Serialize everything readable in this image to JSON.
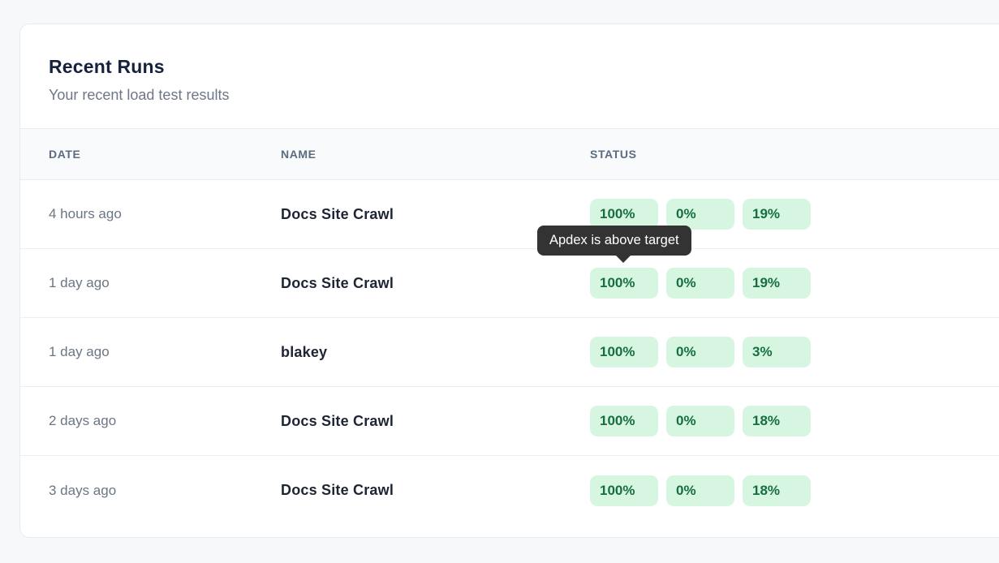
{
  "card": {
    "title": "Recent Runs",
    "subtitle": "Your recent load test results"
  },
  "table": {
    "columns": [
      {
        "label": "DATE"
      },
      {
        "label": "NAME"
      },
      {
        "label": "STATUS"
      }
    ],
    "rows": [
      {
        "date": "4 hours ago",
        "name": "Docs Site Crawl",
        "badges": [
          "100%",
          "0%",
          "19%"
        ]
      },
      {
        "date": "1 day ago",
        "name": "Docs Site Crawl",
        "badges": [
          "100%",
          "0%",
          "19%"
        ],
        "tooltip": "Apdex is above target"
      },
      {
        "date": "1 day ago",
        "name": "blakey",
        "badges": [
          "100%",
          "0%",
          "3%"
        ]
      },
      {
        "date": "2 days ago",
        "name": "Docs Site Crawl",
        "badges": [
          "100%",
          "0%",
          "18%"
        ]
      },
      {
        "date": "3 days ago",
        "name": "Docs Site Crawl",
        "badges": [
          "100%",
          "0%",
          "18%"
        ]
      }
    ]
  },
  "colors": {
    "page_background": "#f7f8fa",
    "card_background": "#ffffff",
    "badge_background": "#d7f6e2",
    "badge_text": "#166e41",
    "tooltip_background": "#333333",
    "tooltip_text": "#ffffff"
  }
}
